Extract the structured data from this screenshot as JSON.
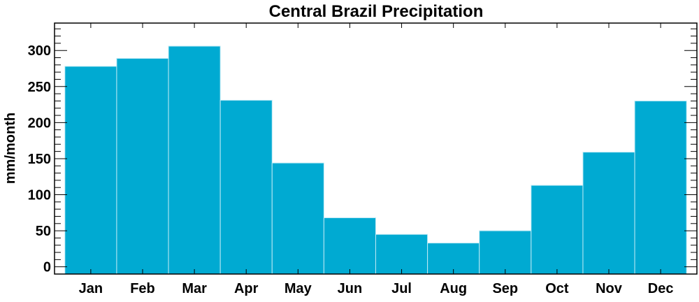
{
  "chart_data": {
    "type": "bar",
    "title": "Central Brazil Precipitation",
    "xlabel": "",
    "ylabel": "mm/month",
    "categories": [
      "Jan",
      "Feb",
      "Mar",
      "Apr",
      "May",
      "Jun",
      "Jul",
      "Aug",
      "Sep",
      "Oct",
      "Nov",
      "Dec"
    ],
    "values": [
      278,
      289,
      306,
      231,
      144,
      68,
      45,
      33,
      50,
      113,
      159,
      230
    ],
    "ylim": [
      -10,
      338
    ],
    "xlim": [
      0.3,
      12.7
    ],
    "yticks": [
      0,
      50,
      100,
      150,
      200,
      250,
      300
    ],
    "ytick_labels": [
      "0",
      "50",
      "100",
      "150",
      "200",
      "250",
      "300"
    ],
    "yminor_step": 10,
    "grid": false,
    "bar_color": "#00AAD2"
  }
}
